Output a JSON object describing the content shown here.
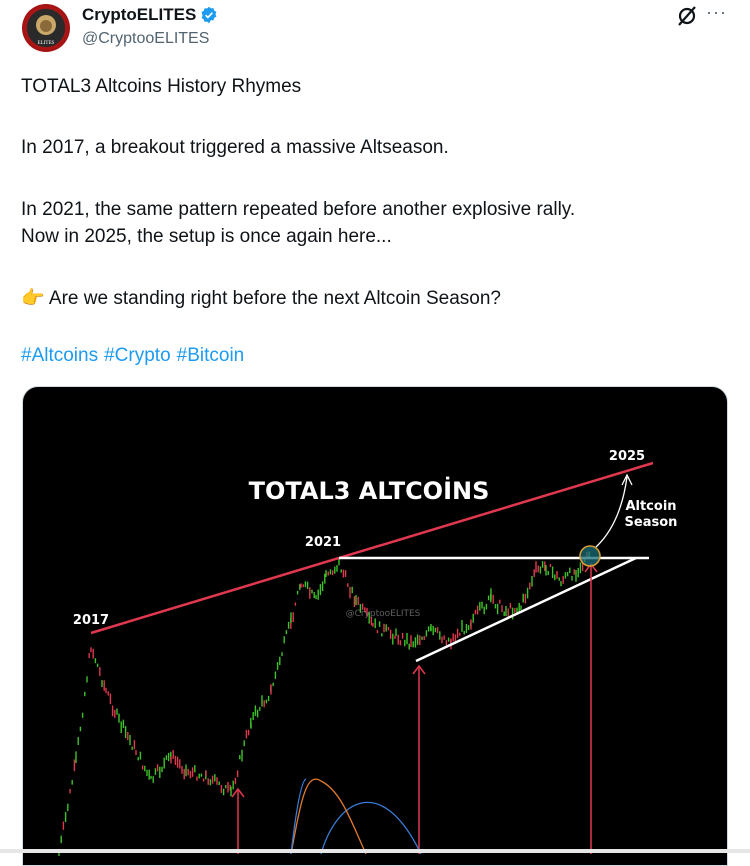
{
  "author": {
    "name": "CryptoELITES",
    "handle": "@CryptooELITES",
    "verified": true,
    "avatar_text": "ELITES"
  },
  "header_icons": {
    "grok": "grok-icon",
    "more": "more-icon",
    "more_glyph": "···"
  },
  "tweet": {
    "title": "TOTAL3 Altcoins  History Rhymes",
    "line1": "In 2017, a breakout triggered a massive Altseason.",
    "line2": "In 2021, the same pattern repeated before another explosive rally.",
    "line3": "Now in 2025, the setup is once again here...",
    "question_emoji": "👉",
    "question": "Are we standing right before the next Altcoin Season?",
    "hashtags": [
      "#Altcoins",
      "#Crypto",
      "#Bitcoin"
    ]
  },
  "media": {
    "title": "TOTAL3 ALTCOİNS",
    "label_2017": "2017",
    "label_2021": "2021",
    "label_2025": "2025",
    "annotation_1": "Altcoin",
    "annotation_2": "Season",
    "watermark": "@CryptooELITES",
    "colors": {
      "resistance": "#e0384f",
      "pattern": "#ffffff",
      "up": "#3ec42a",
      "down": "#e0384f",
      "rsi1": "#3a7bd5",
      "rsi2": "#e07a30"
    }
  }
}
